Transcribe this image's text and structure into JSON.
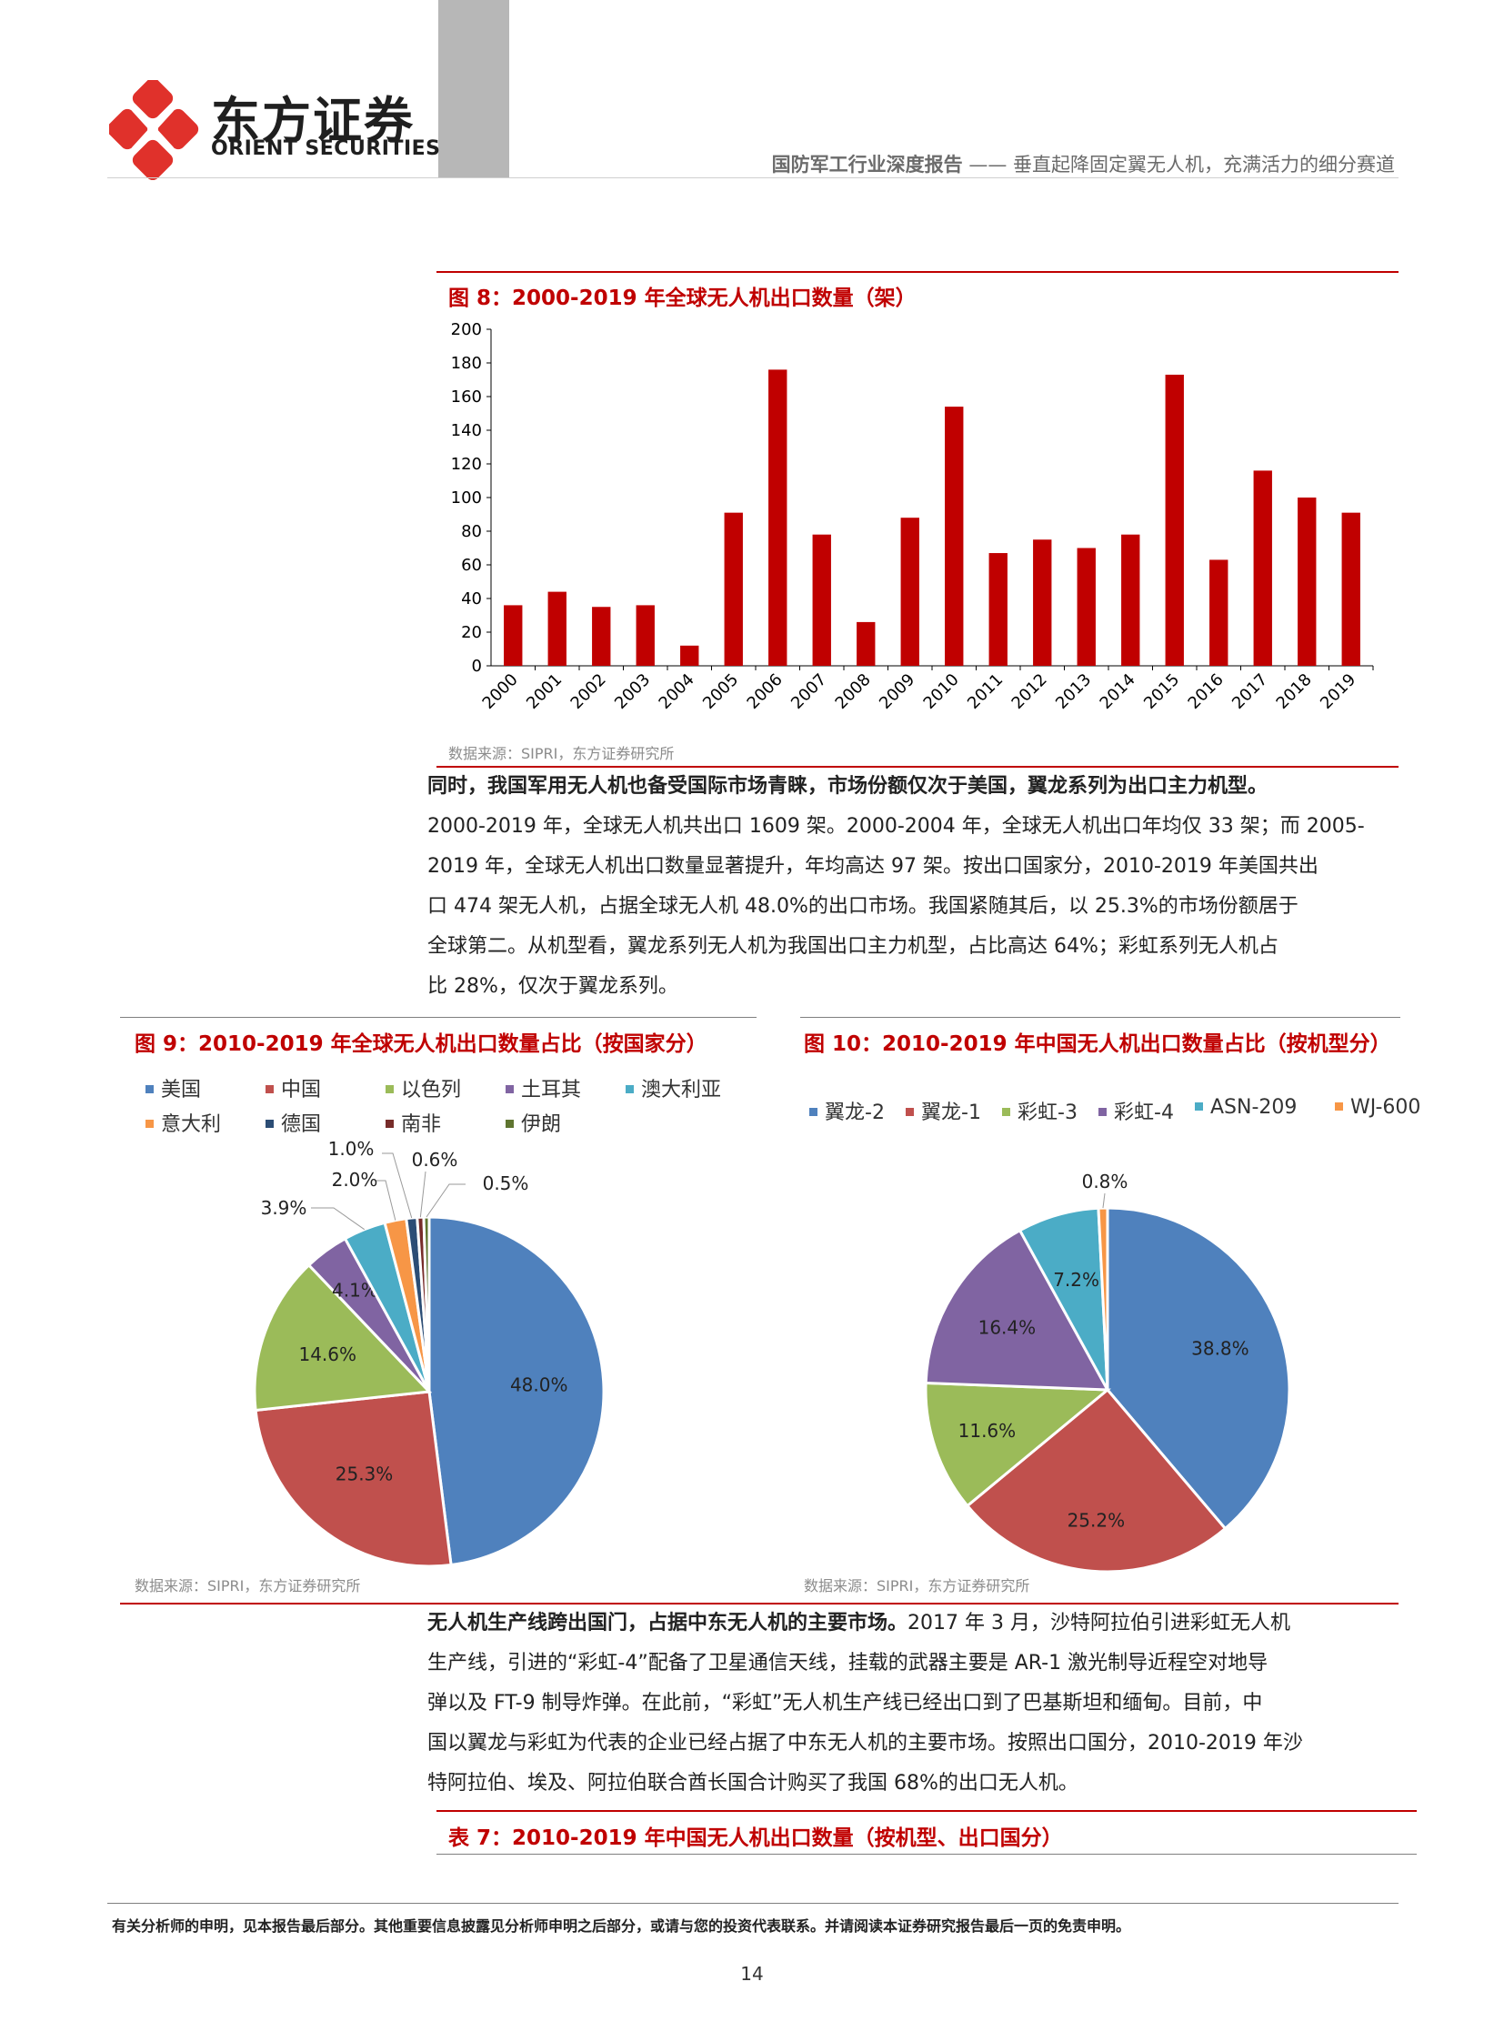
{
  "header": {
    "logo_cn": "东方证券",
    "logo_en": "ORIENT SECURITIES",
    "report_type": "国防军工行业深度报告",
    "report_subtitle": "—— 垂直起降固定翼无人机，充满活力的细分赛道"
  },
  "colors": {
    "brand_red": "#c00000",
    "logo_red": "#e0312b"
  },
  "fig8": {
    "title": "图 8：2000-2019 年全球无人机出口数量（架）",
    "source": "数据来源：SIPRI，东方证券研究所"
  },
  "para1": {
    "lead": "同时，我国军用无人机也备受国际市场青睐，市场份额仅次于美国，翼龙系列为出口主力机型。",
    "lines": [
      "2000-2019 年，全球无人机共出口 1609 架。2000-2004 年，全球无人机出口年均仅 33 架；而 2005-",
      "2019 年，全球无人机出口数量显著提升，年均高达 97 架。按出口国家分，2010-2019 年美国共出",
      "口 474 架无人机，占据全球无人机 48.0%的出口市场。我国紧随其后，以 25.3%的市场份额居于",
      "全球第二。从机型看，翼龙系列无人机为我国出口主力机型，占比高达 64%；彩虹系列无人机占",
      "比 28%，仅次于翼龙系列。"
    ]
  },
  "fig9": {
    "title": "图 9：2010-2019 年全球无人机出口数量占比（按国家分）",
    "source": "数据来源：SIPRI，东方证券研究所"
  },
  "fig10": {
    "title": "图 10：2010-2019 年中国无人机出口数量占比（按机型分）",
    "source": "数据来源：SIPRI，东方证券研究所"
  },
  "para2": {
    "lead": "无人机生产线跨出国门，占据中东无人机的主要市场。",
    "first_rest": "2017 年 3 月，沙特阿拉伯引进彩虹无人机",
    "lines": [
      "生产线，引进的“彩虹-4”配备了卫星通信天线，挂载的武器主要是 AR-1 激光制导近程空对地导",
      "弹以及 FT-9 制导炸弹。在此前，“彩虹”无人机生产线已经出口到了巴基斯坦和缅甸。目前，中",
      "国以翼龙与彩虹为代表的企业已经占据了中东无人机的主要市场。按照出口国分，2010-2019 年沙",
      "特阿拉伯、埃及、阿拉伯联合酋长国合计购买了我国 68%的出口无人机。"
    ]
  },
  "table7": {
    "title": "表 7：2010-2019 年中国无人机出口数量（按机型、出口国分）"
  },
  "footer": {
    "disclaimer": "有关分析师的申明，见本报告最后部分。其他重要信息披露见分析师申明之后部分，或请与您的投资代表联系。并请阅读本证券研究报告最后一页的免责申明。",
    "page": "14"
  },
  "chart_data": [
    {
      "type": "bar",
      "title": "图 8：2000-2019 年全球无人机出口数量（架）",
      "categories": [
        "2000",
        "2001",
        "2002",
        "2003",
        "2004",
        "2005",
        "2006",
        "2007",
        "2008",
        "2009",
        "2010",
        "2011",
        "2012",
        "2013",
        "2014",
        "2015",
        "2016",
        "2017",
        "2018",
        "2019"
      ],
      "values": [
        36,
        44,
        35,
        36,
        12,
        91,
        176,
        78,
        26,
        88,
        154,
        67,
        75,
        70,
        78,
        173,
        63,
        116,
        100,
        91
      ],
      "ylim": [
        0,
        200
      ],
      "yticks": [
        "0",
        "20",
        "40",
        "60",
        "80",
        "100",
        "120",
        "140",
        "160",
        "180",
        "200"
      ],
      "color": "#c00000",
      "grid": false
    },
    {
      "type": "pie",
      "title": "图 9：2010-2019 年全球无人机出口数量占比（按国家分）",
      "legend_position": "top",
      "slices": [
        {
          "name": "美国",
          "value": 48.0,
          "label": "48.0%",
          "color": "#4f81bd"
        },
        {
          "name": "中国",
          "value": 25.3,
          "label": "25.3%",
          "color": "#c0504d"
        },
        {
          "name": "以色列",
          "value": 14.6,
          "label": "14.6%",
          "color": "#9bbb59"
        },
        {
          "name": "土耳其",
          "value": 4.1,
          "label": "4.1%",
          "color": "#8064a2"
        },
        {
          "name": "澳大利亚",
          "value": 3.9,
          "label": "3.9%",
          "color": "#4bacc6"
        },
        {
          "name": "意大利",
          "value": 2.0,
          "label": "2.0%",
          "color": "#f79646"
        },
        {
          "name": "德国",
          "value": 1.0,
          "label": "1.0%",
          "color": "#2c4d75"
        },
        {
          "name": "南非",
          "value": 0.6,
          "label": "0.6%",
          "color": "#772c2a"
        },
        {
          "name": "伊朗",
          "value": 0.5,
          "label": "0.5%",
          "color": "#5f7530"
        }
      ]
    },
    {
      "type": "pie",
      "title": "图 10：2010-2019 年中国无人机出口数量占比（按机型分）",
      "legend_position": "top",
      "slices": [
        {
          "name": "翼龙-2",
          "value": 38.8,
          "label": "38.8%",
          "color": "#4f81bd"
        },
        {
          "name": "翼龙-1",
          "value": 25.2,
          "label": "25.2%",
          "color": "#c0504d"
        },
        {
          "name": "彩虹-3",
          "value": 11.6,
          "label": "11.6%",
          "color": "#9bbb59"
        },
        {
          "name": "彩虹-4",
          "value": 16.4,
          "label": "16.4%",
          "color": "#8064a2"
        },
        {
          "name": "ASN-209",
          "value": 7.2,
          "label": "7.2%",
          "color": "#4bacc6"
        },
        {
          "name": "WJ-600",
          "value": 0.8,
          "label": "0.8%",
          "color": "#f79646"
        }
      ]
    }
  ]
}
